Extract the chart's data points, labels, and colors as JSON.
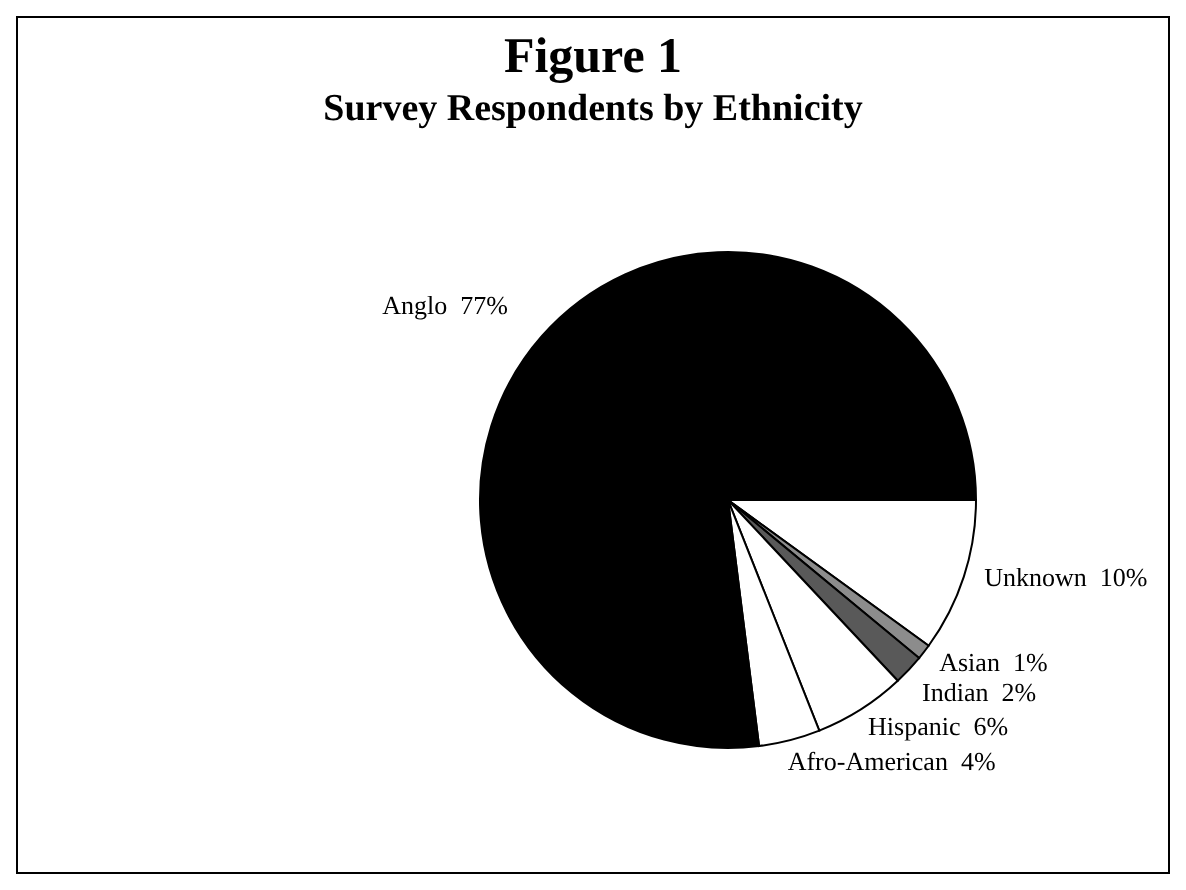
{
  "chart_data": {
    "type": "pie",
    "title": "Figure 1",
    "subtitle": "Survey Respondents by Ethnicity",
    "categories": [
      "Unknown",
      "Asian",
      "Indian",
      "Hispanic",
      "Afro-American",
      "Anglo"
    ],
    "values": [
      10,
      1,
      2,
      6,
      4,
      77
    ],
    "colors": [
      "#ffffff",
      "#8c8c8c",
      "#595959",
      "#ffffff",
      "#ffffff",
      "#000000"
    ],
    "value_labels": [
      "10%",
      "1%",
      "2%",
      "6%",
      "4%",
      "77%"
    ],
    "legend": false
  }
}
